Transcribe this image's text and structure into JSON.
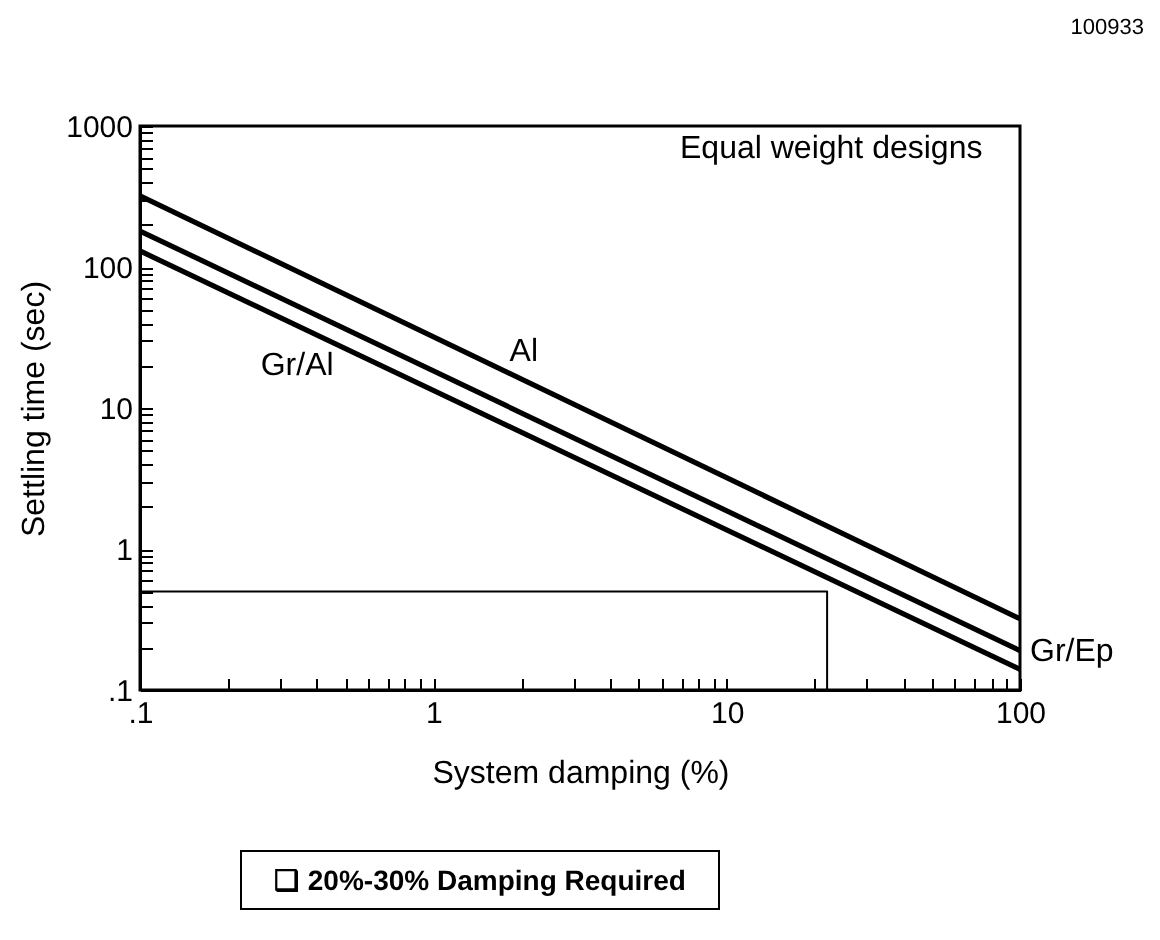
{
  "chart_data": {
    "type": "line",
    "xlabel": "System damping (%)",
    "ylabel": "Settling time (sec)",
    "log": "xy",
    "marker": "none",
    "line_style": "solid",
    "xlim": [
      0.1,
      100
    ],
    "ylim": [
      0.1,
      1000
    ],
    "xticks": [
      {
        "value": 0.1,
        "label": ".1"
      },
      {
        "value": 0.2,
        "label": null
      },
      {
        "value": 0.3,
        "label": null
      },
      {
        "value": 0.4,
        "label": null
      },
      {
        "value": 0.5,
        "label": null
      },
      {
        "value": 0.6,
        "label": null
      },
      {
        "value": 0.7,
        "label": null
      },
      {
        "value": 0.8,
        "label": null
      },
      {
        "value": 0.9,
        "label": null
      },
      1,
      {
        "value": 2,
        "label": null
      },
      {
        "value": 3,
        "label": null
      },
      {
        "value": 4,
        "label": null
      },
      {
        "value": 5,
        "label": null
      },
      {
        "value": 6,
        "label": null
      },
      {
        "value": 7,
        "label": null
      },
      {
        "value": 8,
        "label": null
      },
      {
        "value": 9,
        "label": null
      },
      10,
      {
        "value": 20,
        "label": null
      },
      {
        "value": 30,
        "label": null
      },
      {
        "value": 40,
        "label": null
      },
      {
        "value": 50,
        "label": null
      },
      {
        "value": 60,
        "label": null
      },
      {
        "value": 70,
        "label": null
      },
      {
        "value": 80,
        "label": null
      },
      {
        "value": 90,
        "label": null
      },
      100
    ],
    "yticks": [
      {
        "value": 0.1,
        "label": ".1"
      },
      {
        "value": 0.2,
        "label": null
      },
      {
        "value": 0.3,
        "label": null
      },
      {
        "value": 0.4,
        "label": null
      },
      {
        "value": 0.5,
        "label": null
      },
      {
        "value": 0.6,
        "label": null
      },
      {
        "value": 0.7,
        "label": null
      },
      {
        "value": 0.8,
        "label": null
      },
      {
        "value": 0.9,
        "label": null
      },
      1,
      {
        "value": 2,
        "label": null
      },
      {
        "value": 3,
        "label": null
      },
      {
        "value": 4,
        "label": null
      },
      {
        "value": 5,
        "label": null
      },
      {
        "value": 6,
        "label": null
      },
      {
        "value": 7,
        "label": null
      },
      {
        "value": 8,
        "label": null
      },
      {
        "value": 9,
        "label": null
      },
      10,
      {
        "value": 20,
        "label": null
      },
      {
        "value": 30,
        "label": null
      },
      {
        "value": 40,
        "label": null
      },
      {
        "value": 50,
        "label": null
      },
      {
        "value": 60,
        "label": null
      },
      {
        "value": 70,
        "label": null
      },
      {
        "value": 80,
        "label": null
      },
      {
        "value": 90,
        "label": null
      },
      100,
      {
        "value": 200,
        "label": null
      },
      {
        "value": 300,
        "label": null
      },
      {
        "value": 400,
        "label": null
      },
      {
        "value": 500,
        "label": null
      },
      {
        "value": 600,
        "label": null
      },
      {
        "value": 700,
        "label": null
      },
      {
        "value": 800,
        "label": null
      },
      {
        "value": 900,
        "label": null
      },
      1000
    ],
    "series": [
      {
        "name": "Al",
        "color": "#000000",
        "x": [
          0.1,
          100
        ],
        "values": [
          320,
          0.32
        ]
      },
      {
        "name": "Gr/Ep",
        "color": "#000000",
        "x": [
          0.1,
          100
        ],
        "values": [
          180,
          0.19
        ]
      },
      {
        "name": "Gr/Al",
        "color": "#000000",
        "x": [
          0.1,
          100
        ],
        "values": [
          130,
          0.14
        ]
      },
      {
        "color": "#000000",
        "x": [
          0.1,
          22,
          22
        ],
        "values": [
          0.5,
          0.5,
          0.1
        ]
      }
    ],
    "annotations": [
      "100933",
      "Equal weight designs",
      "❑ 20%-30% Damping Required"
    ]
  }
}
